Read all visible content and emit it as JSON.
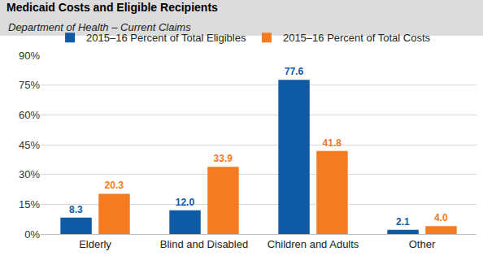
{
  "chart_data": {
    "type": "bar",
    "title": "Medicaid Costs and Eligible Recipients",
    "subtitle": "Department of Health – Current Claims",
    "categories": [
      "Elderly",
      "Blind and Disabled",
      "Children and Adults",
      "Other"
    ],
    "series": [
      {
        "name": "2015–16 Percent of Total Eligibles",
        "color": "#0f5ba7",
        "values": [
          8.3,
          12.0,
          77.6,
          2.1
        ],
        "value_labels": [
          "8.3",
          "12.0",
          "77.6",
          "2.1"
        ]
      },
      {
        "name": "2015–16 Percent of Total Costs",
        "color": "#f47b20",
        "values": [
          20.3,
          33.9,
          41.8,
          4.0
        ],
        "value_labels": [
          "20.3",
          "33.9",
          "41.8",
          "4.0"
        ]
      }
    ],
    "ylim": [
      0,
      90
    ],
    "yticks": [
      {
        "value": 0,
        "label": "0%"
      },
      {
        "value": 15,
        "label": "15%"
      },
      {
        "value": 30,
        "label": "30%"
      },
      {
        "value": 45,
        "label": "45%"
      },
      {
        "value": 60,
        "label": "60%"
      },
      {
        "value": 75,
        "label": "75%"
      },
      {
        "value": 90,
        "label": "90%"
      }
    ],
    "grid": true,
    "legend": "top left",
    "data_labels": true
  }
}
